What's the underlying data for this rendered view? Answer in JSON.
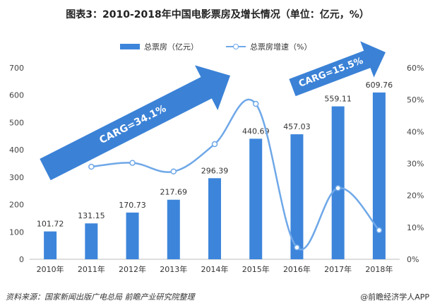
{
  "chart_data": {
    "type": "bar",
    "title": "图表3：2010-2018年中国电影票房及增长情况（单位：亿元，%）",
    "categories": [
      "2010年",
      "2011年",
      "2012年",
      "2013年",
      "2014年",
      "2015年",
      "2016年",
      "2017年",
      "2018年"
    ],
    "series": [
      {
        "name": "总票房（亿元）",
        "type": "bar",
        "axis": "left",
        "values": [
          101.72,
          131.15,
          170.73,
          217.69,
          296.39,
          440.69,
          457.03,
          559.11,
          609.76
        ]
      },
      {
        "name": "总票房增速（%）",
        "type": "line",
        "axis": "right",
        "values": [
          null,
          29.0,
          30.2,
          27.5,
          36.1,
          48.7,
          3.7,
          22.3,
          9.1
        ]
      }
    ],
    "left_axis": {
      "ylim": [
        0,
        700
      ],
      "ticks": [
        "0",
        "100",
        "200",
        "300",
        "400",
        "500",
        "600",
        "700"
      ]
    },
    "right_axis": {
      "ylim": [
        0,
        60
      ],
      "ticks": [
        "0%",
        "10%",
        "20%",
        "30%",
        "40%",
        "50%",
        "60%"
      ]
    },
    "annotations": [
      "CARG=34.1%",
      "CARG=15.5%"
    ],
    "legend_position": "top",
    "grid": false,
    "colors": {
      "bar": "#3D85DB",
      "line": "#6FA8E8",
      "arrow": "#3B82D6"
    }
  },
  "footer": {
    "source": "资料来源：国家新闻出版广电总局  前瞻产业研究院整理",
    "brand": "@前瞻经济学人APP"
  }
}
